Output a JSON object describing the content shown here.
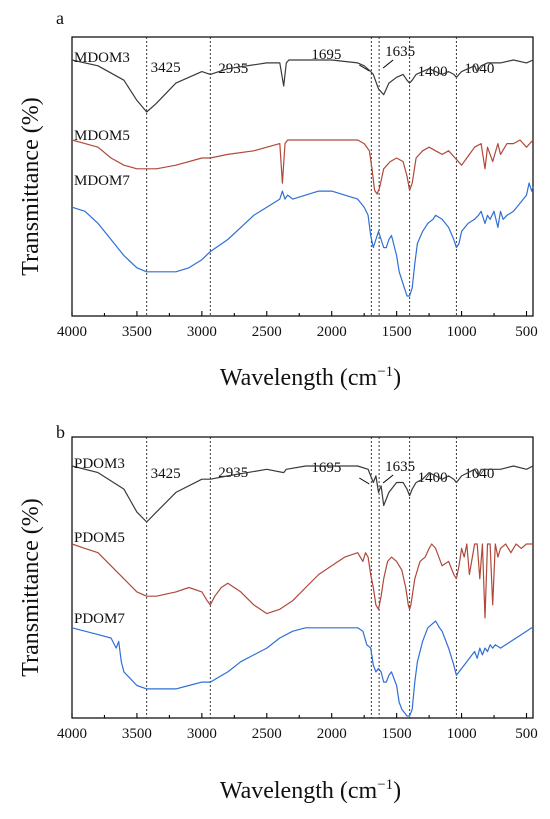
{
  "chart_data": [
    {
      "type": "line",
      "panel_label": "a",
      "xlabel": "Wavelength (cm",
      "xlabel_sup": "−1",
      "xlabel_close": ")",
      "ylabel": "Transmittance (%)",
      "xlim": [
        4000,
        450
      ],
      "x_reversed": true,
      "x_ticks": [
        4000,
        3500,
        3000,
        2500,
        2000,
        1500,
        1000,
        500
      ],
      "y_ticks_shown": false,
      "reference_lines": [
        3425,
        2935,
        1695,
        1635,
        1400,
        1040
      ],
      "peak_labels": [
        "3425",
        "2935",
        "1695",
        "1635",
        "1400",
        "1040"
      ],
      "series": [
        {
          "name": "MDOM3",
          "color": "#3a3a3a",
          "x": [
            4000,
            3800,
            3600,
            3500,
            3425,
            3350,
            3200,
            3000,
            2935,
            2800,
            2500,
            2400,
            2370,
            2350,
            2330,
            2200,
            2000,
            1800,
            1750,
            1700,
            1680,
            1640,
            1600,
            1560,
            1500,
            1450,
            1420,
            1400,
            1380,
            1350,
            1300,
            1250,
            1200,
            1150,
            1100,
            1060,
            1040,
            1020,
            1000,
            950,
            900,
            880,
            850,
            800,
            700,
            600,
            500,
            450
          ],
          "y": [
            100,
            98,
            93,
            86,
            82,
            85,
            92,
            96,
            95,
            97,
            99,
            99,
            91,
            99,
            100,
            100,
            100,
            99,
            98,
            96,
            95,
            90,
            88,
            92,
            94,
            95,
            93,
            92,
            93,
            95,
            96,
            97,
            96,
            95,
            96,
            95,
            94,
            95,
            96,
            97,
            98,
            96,
            98,
            99,
            99,
            100,
            99,
            100
          ]
        },
        {
          "name": "MDOM5",
          "color": "#b0493a",
          "x": [
            4000,
            3900,
            3800,
            3700,
            3600,
            3500,
            3425,
            3350,
            3200,
            3000,
            2935,
            2800,
            2600,
            2400,
            2380,
            2360,
            2340,
            2300,
            2100,
            1900,
            1800,
            1750,
            1710,
            1690,
            1670,
            1650,
            1630,
            1600,
            1550,
            1500,
            1450,
            1420,
            1400,
            1380,
            1350,
            1300,
            1250,
            1200,
            1150,
            1100,
            1050,
            1000,
            960,
            900,
            850,
            820,
            800,
            760,
            720,
            700,
            650,
            600,
            550,
            500,
            450
          ],
          "y": [
            100,
            99,
            98,
            95,
            93,
            92,
            92,
            92,
            93,
            95,
            95,
            96,
            97,
            99,
            88,
            99,
            100,
            100,
            100,
            100,
            100,
            99,
            97,
            92,
            86,
            85,
            87,
            92,
            94,
            95,
            94,
            90,
            86,
            88,
            95,
            97,
            98,
            97,
            96,
            97,
            95,
            93,
            95,
            98,
            99,
            92,
            98,
            94,
            99,
            96,
            99,
            99,
            100,
            98,
            100
          ]
        },
        {
          "name": "MDOM7",
          "color": "#2f6fd6",
          "x": [
            4000,
            3900,
            3800,
            3700,
            3600,
            3500,
            3425,
            3300,
            3200,
            3100,
            3000,
            2935,
            2800,
            2700,
            2600,
            2500,
            2400,
            2380,
            2360,
            2340,
            2300,
            2200,
            2100,
            2000,
            1900,
            1800,
            1750,
            1720,
            1700,
            1680,
            1660,
            1640,
            1620,
            1600,
            1580,
            1560,
            1540,
            1500,
            1480,
            1460,
            1440,
            1420,
            1400,
            1380,
            1360,
            1340,
            1300,
            1260,
            1220,
            1200,
            1150,
            1100,
            1060,
            1040,
            1020,
            1000,
            950,
            900,
            870,
            850,
            820,
            800,
            780,
            750,
            720,
            700,
            680,
            650,
            600,
            550,
            500,
            480,
            460,
            450
          ],
          "y": [
            92,
            91,
            88,
            84,
            80,
            77,
            76,
            76,
            76,
            77,
            79,
            81,
            84,
            87,
            90,
            92,
            94,
            96,
            94,
            95,
            94,
            95,
            96,
            96,
            95,
            94,
            92,
            90,
            85,
            82,
            84,
            86,
            84,
            82,
            82,
            84,
            85,
            80,
            76,
            74,
            72,
            70,
            70,
            72,
            78,
            83,
            86,
            88,
            89,
            90,
            89,
            87,
            84,
            82,
            83,
            86,
            88,
            89,
            90,
            91,
            88,
            90,
            89,
            91,
            87,
            91,
            89,
            90,
            91,
            93,
            95,
            98,
            96,
            97
          ]
        }
      ]
    },
    {
      "type": "line",
      "panel_label": "b",
      "xlabel": "Wavelength (cm",
      "xlabel_sup": "−1",
      "xlabel_close": ")",
      "ylabel": "Transmittance (%)",
      "xlim": [
        4000,
        450
      ],
      "x_reversed": true,
      "x_ticks": [
        4000,
        3500,
        3000,
        2500,
        2000,
        1500,
        1000,
        500
      ],
      "y_ticks_shown": false,
      "reference_lines": [
        3425,
        2935,
        1695,
        1635,
        1400,
        1040
      ],
      "peak_labels": [
        "3425",
        "2935",
        "1695",
        "1635",
        "1400",
        "1040"
      ],
      "series": [
        {
          "name": "PDOM3",
          "color": "#3a3a3a",
          "x": [
            4000,
            3800,
            3600,
            3500,
            3425,
            3350,
            3200,
            3000,
            2935,
            2800,
            2500,
            2370,
            2350,
            2200,
            2000,
            1800,
            1720,
            1700,
            1680,
            1660,
            1640,
            1620,
            1600,
            1560,
            1500,
            1450,
            1420,
            1400,
            1380,
            1350,
            1300,
            1250,
            1200,
            1150,
            1100,
            1060,
            1040,
            1020,
            1000,
            950,
            900,
            870,
            850,
            800,
            700,
            600,
            500,
            450
          ],
          "y": [
            100,
            98,
            93,
            86,
            83,
            86,
            92,
            96,
            96,
            97,
            99,
            98,
            99,
            100,
            100,
            100,
            99,
            97,
            95,
            97,
            92,
            94,
            88,
            92,
            95,
            95,
            93,
            91,
            93,
            95,
            96,
            98,
            97,
            96,
            97,
            96,
            95,
            96,
            97,
            98,
            99,
            97,
            99,
            99,
            99,
            100,
            99,
            100
          ]
        },
        {
          "name": "PDOM5",
          "color": "#b0493a",
          "x": [
            4000,
            3900,
            3800,
            3700,
            3600,
            3500,
            3425,
            3350,
            3200,
            3100,
            3000,
            2960,
            2935,
            2900,
            2850,
            2800,
            2700,
            2600,
            2500,
            2400,
            2300,
            2200,
            2100,
            2000,
            1900,
            1800,
            1760,
            1740,
            1720,
            1700,
            1680,
            1660,
            1640,
            1620,
            1600,
            1570,
            1540,
            1500,
            1460,
            1430,
            1410,
            1400,
            1390,
            1360,
            1320,
            1280,
            1250,
            1230,
            1200,
            1150,
            1100,
            1060,
            1040,
            1020,
            1000,
            980,
            960,
            940,
            900,
            880,
            860,
            840,
            820,
            800,
            780,
            760,
            740,
            720,
            700,
            660,
            620,
            580,
            540,
            500,
            460,
            450
          ],
          "y": [
            100,
            99,
            98,
            95,
            92,
            89,
            88,
            88,
            89,
            90,
            89,
            87,
            86,
            88,
            90,
            91,
            89,
            86,
            84,
            85,
            87,
            90,
            93,
            95,
            97,
            98,
            96,
            98,
            97,
            93,
            90,
            86,
            85,
            88,
            92,
            96,
            97,
            96,
            94,
            90,
            86,
            85,
            86,
            92,
            96,
            97,
            99,
            100,
            99,
            95,
            96,
            93,
            92,
            95,
            99,
            97,
            100,
            93,
            100,
            100,
            92,
            100,
            83,
            100,
            100,
            86,
            100,
            97,
            99,
            100,
            98,
            100,
            99,
            100,
            100,
            100
          ]
        },
        {
          "name": "PDOM7",
          "color": "#2f6fd6",
          "x": [
            4000,
            3900,
            3800,
            3700,
            3660,
            3640,
            3620,
            3600,
            3500,
            3425,
            3300,
            3200,
            3100,
            3000,
            2935,
            2800,
            2700,
            2600,
            2500,
            2400,
            2300,
            2200,
            2100,
            2000,
            1900,
            1800,
            1760,
            1730,
            1700,
            1680,
            1660,
            1640,
            1620,
            1600,
            1580,
            1560,
            1540,
            1500,
            1480,
            1460,
            1440,
            1420,
            1400,
            1380,
            1360,
            1340,
            1300,
            1260,
            1230,
            1200,
            1170,
            1150,
            1100,
            1060,
            1040,
            1020,
            1000,
            960,
            920,
            900,
            880,
            860,
            840,
            820,
            800,
            780,
            760,
            740,
            700,
            660,
            620,
            580,
            540,
            500,
            460,
            450
          ],
          "y": [
            96,
            95,
            94,
            93,
            90,
            92,
            86,
            83,
            79,
            78,
            78,
            78,
            79,
            80,
            80,
            83,
            86,
            88,
            90,
            93,
            95,
            96,
            96,
            96,
            96,
            96,
            95,
            91,
            90,
            85,
            83,
            84,
            83,
            80,
            80,
            82,
            83,
            79,
            74,
            72,
            71,
            70,
            70,
            72,
            80,
            86,
            92,
            96,
            97,
            98,
            96,
            95,
            90,
            85,
            82,
            83,
            84,
            86,
            88,
            89,
            87,
            90,
            88,
            90,
            89,
            91,
            90,
            91,
            90,
            91,
            92,
            93,
            94,
            95,
            96,
            96
          ]
        }
      ]
    }
  ]
}
